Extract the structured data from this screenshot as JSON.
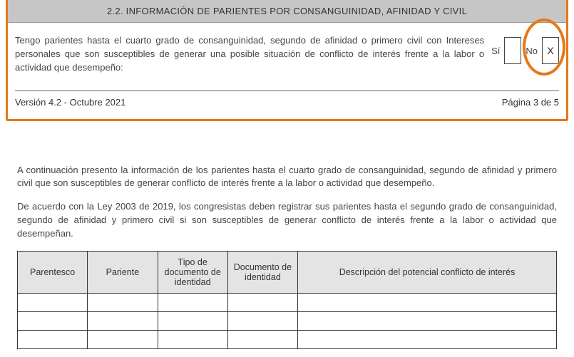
{
  "section": {
    "header": "2.2. INFORMACIÓN DE PARIENTES POR CONSANGUINIDAD, AFINIDAD Y CIVIL",
    "question": "Tengo parientes hasta el cuarto grado de consanguinidad, segundo de afinidad o primero civil con Intereses personales que son susceptibles de generar una posible situación de conflicto de interés frente a la labor o actividad que desempeño:",
    "si_label": "Sí",
    "si_value": "",
    "no_label": "No",
    "no_value": "X"
  },
  "footer": {
    "version": "Versión 4.2 - Octubre 2021",
    "page": "Página 3 de 5"
  },
  "lower": {
    "para1": "A continuación presento la información de los parientes hasta el cuarto grado de consanguinidad, segundo de afinidad y primero civil que son susceptibles de generar conflicto de interés frente a la labor o actividad que desempeño.",
    "para2": "De acuerdo con la Ley 2003 de 2019, los congresistas deben registrar sus parientes hasta el segundo grado de consanguinidad, segundo de afinidad y primero civil si son susceptibles de generar conflicto de interés frente a la labor o actividad que desempeñan."
  },
  "table": {
    "headers": {
      "c1": "Parentesco",
      "c2": "Pariente",
      "c3": "Tipo de documento de identidad",
      "c4": "Documento de identidad",
      "c5": "Descripción del potencial conflicto de interés"
    },
    "row_count": 3
  },
  "style": {
    "highlight_color": "#e67817",
    "header_bg": "#c6c6c6",
    "table_header_bg": "#e4e4e4",
    "border_color": "#333333",
    "text_color": "#444444"
  }
}
